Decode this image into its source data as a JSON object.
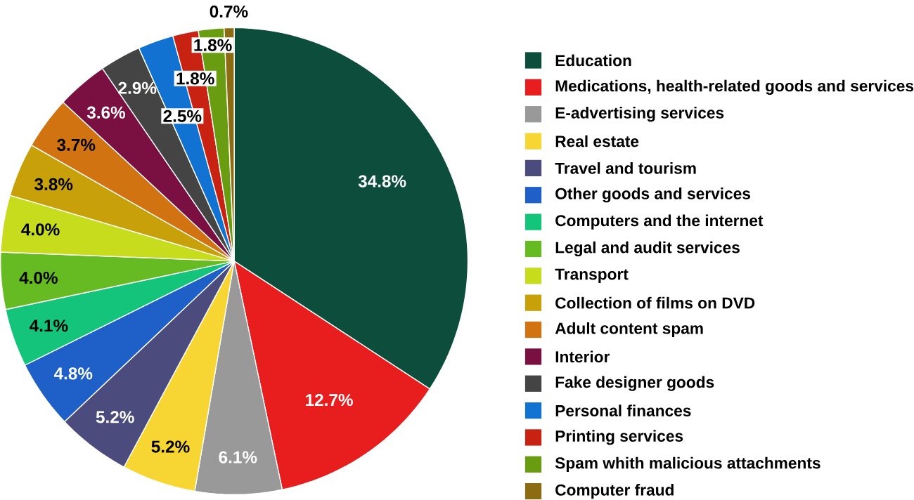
{
  "chart_data": {
    "type": "pie",
    "categories": [
      "Education",
      "Medications, health-related goods and services",
      "E-advertising services",
      "Real estate",
      "Travel and tourism",
      "Other goods and services",
      "Computers and the internet",
      "Legal and audit services",
      "Transport",
      "Collection of films on DVD",
      "Adult content spam",
      "Interior",
      "Fake designer goods",
      "Personal finances",
      "Printing services",
      "Spam whith malicious attachments",
      "Computer fraud"
    ],
    "values": [
      34.8,
      12.7,
      6.1,
      5.2,
      5.2,
      4.8,
      4.1,
      4.0,
      4.0,
      3.8,
      3.7,
      3.6,
      2.9,
      2.5,
      1.8,
      1.8,
      0.7
    ],
    "colors": [
      "#0d4d3c",
      "#e81e1e",
      "#999999",
      "#f7d634",
      "#4b4b7d",
      "#1e5fc8",
      "#14c47a",
      "#66bb22",
      "#c8dc1e",
      "#c8a00a",
      "#d27312",
      "#7a1042",
      "#444444",
      "#1272d2",
      "#c82212",
      "#6a9c12",
      "#8c6c12"
    ],
    "value_labels": [
      "34.8%",
      "12.7%",
      "6.1%",
      "5.2%",
      "5.2%",
      "4.8%",
      "4.1%",
      "4.0%",
      "4.0%",
      "3.8%",
      "3.7%",
      "3.6%",
      "2.9%",
      "2.5%",
      "1.8%",
      "1.8%",
      "0.7%"
    ],
    "legend": "right"
  }
}
